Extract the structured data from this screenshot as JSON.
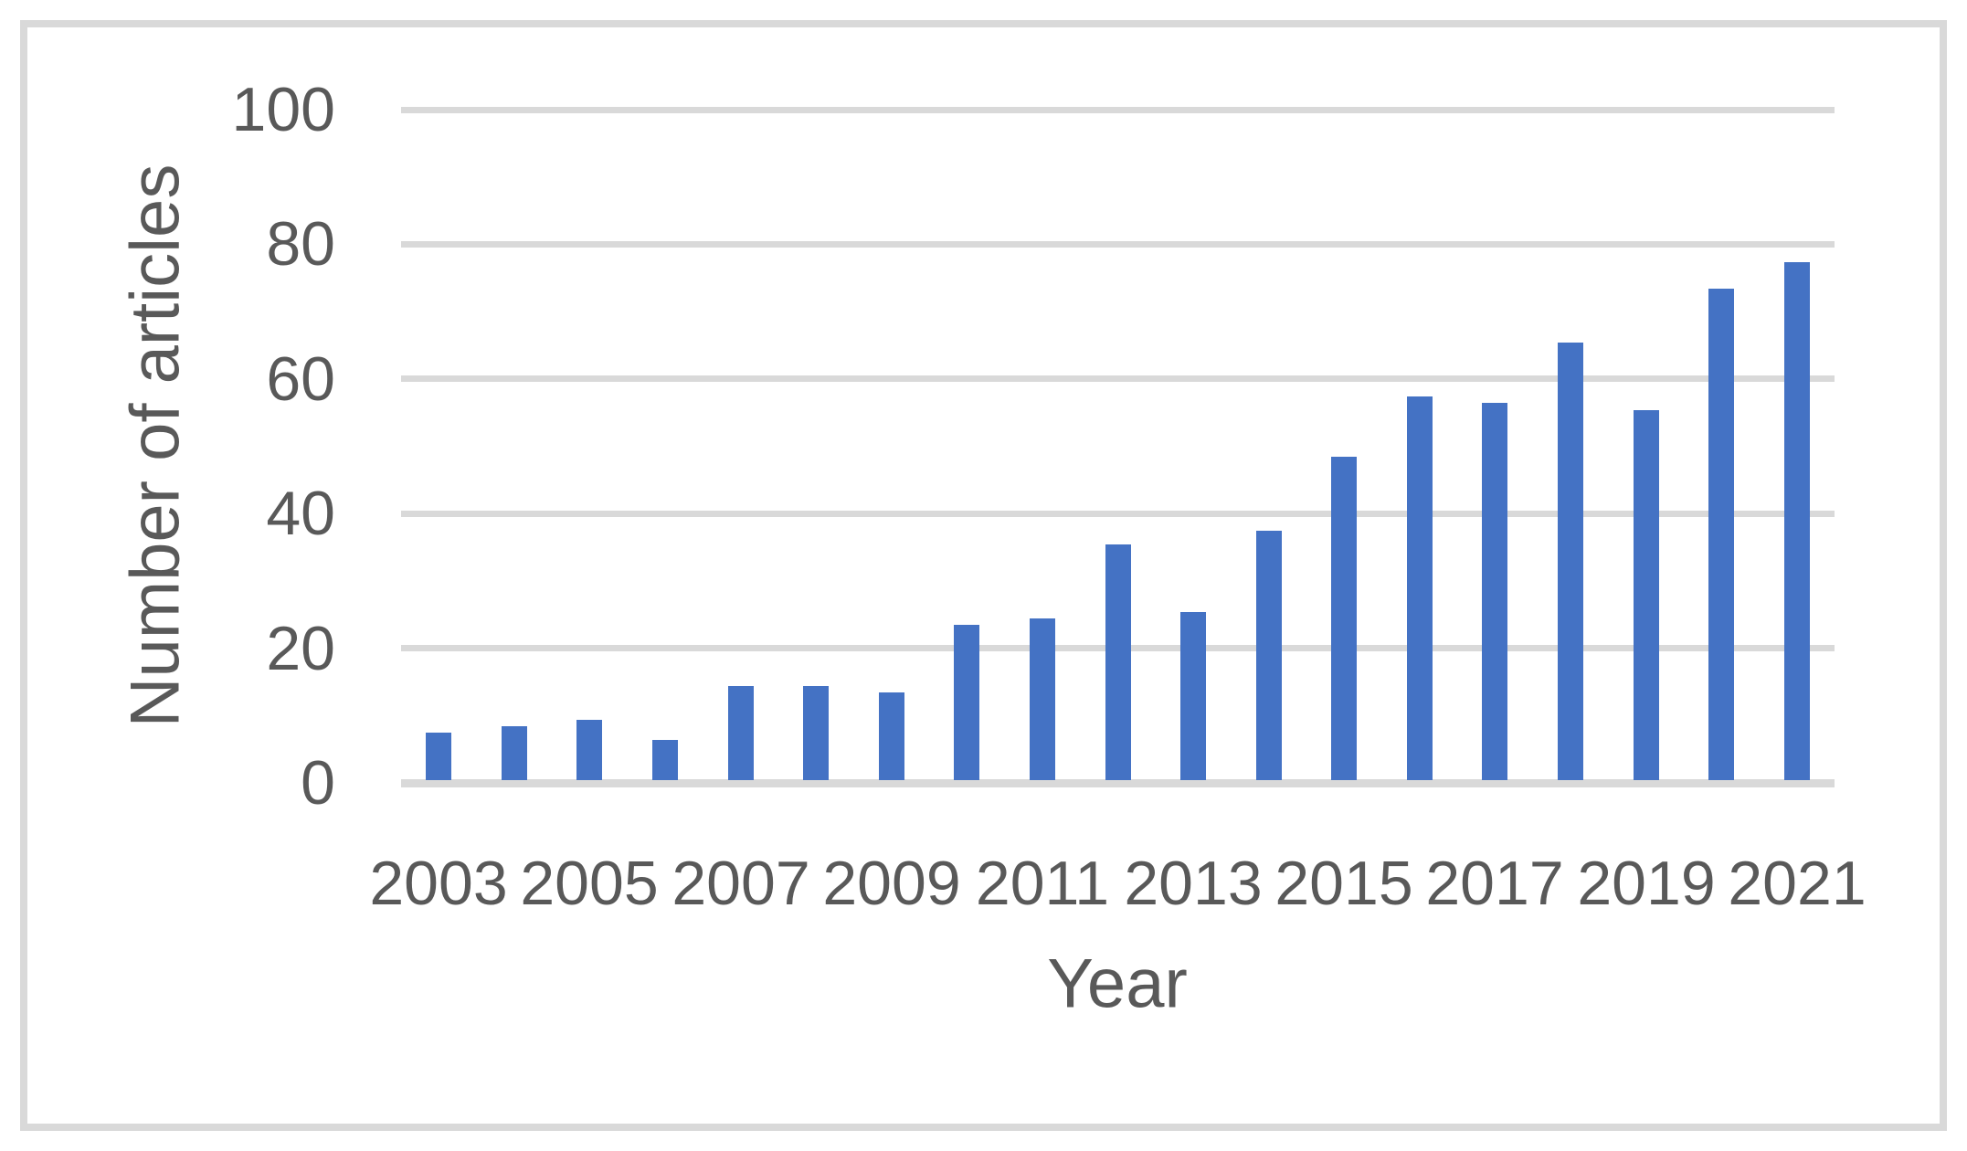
{
  "chart_data": {
    "type": "bar",
    "title": "",
    "xlabel": "Year",
    "ylabel": "Number of articles",
    "categories": [
      "2003",
      "2004",
      "2005",
      "2006",
      "2007",
      "2008",
      "2009",
      "2010",
      "2011",
      "2012",
      "2013",
      "2014",
      "2015",
      "2016",
      "2017",
      "2018",
      "2019",
      "2020",
      "2021"
    ],
    "values": [
      7,
      8,
      9,
      6,
      14,
      14,
      13,
      23,
      24,
      35,
      25,
      37,
      48,
      57,
      56,
      65,
      55,
      73,
      77
    ],
    "ylim": [
      0,
      100
    ],
    "yticks": [
      0,
      20,
      40,
      60,
      80,
      100
    ],
    "xtick_labels_shown": [
      "2003",
      "2005",
      "2007",
      "2009",
      "2011",
      "2013",
      "2015",
      "2017",
      "2019",
      "2021"
    ],
    "legend": "none",
    "grid": true,
    "colors": {
      "bar": "#4472C4",
      "gridline": "#D9D9D9",
      "axis_line": "#D9D9D9",
      "text": "#595959",
      "frame_border": "#D9D9D9",
      "background": "#FFFFFF"
    }
  }
}
